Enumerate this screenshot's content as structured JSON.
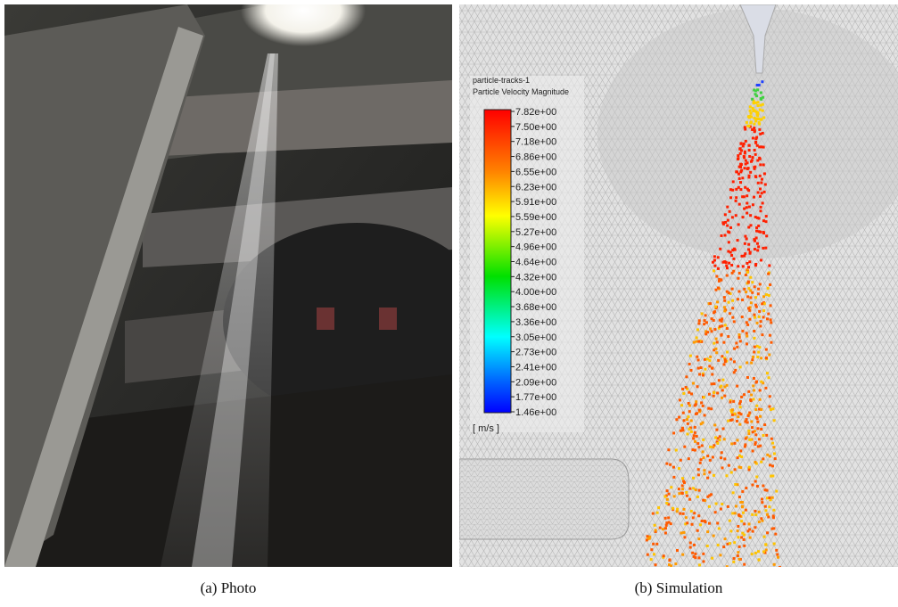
{
  "panels": [
    {
      "caption": "(a) Photo"
    },
    {
      "caption": "(b) Simulation",
      "legend": {
        "name": "particle-tracks-1",
        "title": "Particle Velocity Magnitude",
        "labels": [
          "7.82e+00",
          "7.50e+00",
          "7.18e+00",
          "6.86e+00",
          "6.55e+00",
          "6.23e+00",
          "5.91e+00",
          "5.59e+00",
          "5.27e+00",
          "4.96e+00",
          "4.64e+00",
          "4.32e+00",
          "4.00e+00",
          "3.68e+00",
          "3.36e+00",
          "3.05e+00",
          "2.73e+00",
          "2.41e+00",
          "2.09e+00",
          "1.77e+00",
          "1.46e+00"
        ],
        "unit": "[ m/s ]"
      }
    }
  ]
}
